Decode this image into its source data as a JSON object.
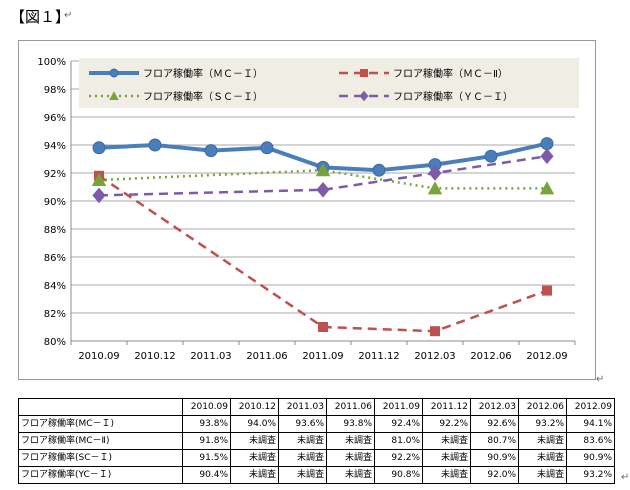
{
  "doc": {
    "title": "【図１】",
    "para_mark": "↵"
  },
  "chart_data": {
    "type": "line",
    "title": "",
    "xlabel": "",
    "ylabel": "",
    "categories": [
      "2010.09",
      "2010.12",
      "2011.03",
      "2011.06",
      "2011.09",
      "2011.12",
      "2012.03",
      "2012.06",
      "2012.09"
    ],
    "ylim": [
      80,
      100
    ],
    "yticks": [
      80,
      82,
      84,
      86,
      88,
      90,
      92,
      94,
      96,
      98,
      100
    ],
    "ytick_labels": [
      "80%",
      "82%",
      "84%",
      "86%",
      "88%",
      "90%",
      "92%",
      "94%",
      "96%",
      "98%",
      "100%"
    ],
    "grid": true,
    "legend_position": "top",
    "series": [
      {
        "name": "フロア稼働率（ＭＣ－Ｉ）",
        "values": [
          93.8,
          94.0,
          93.6,
          93.8,
          92.4,
          92.2,
          92.6,
          93.2,
          94.1
        ],
        "color": "#4a7ebb",
        "marker": "circle",
        "style": "solid"
      },
      {
        "name": "フロア稼働率（ＭＣ－Ⅱ）",
        "values": [
          91.8,
          null,
          null,
          null,
          81.0,
          null,
          80.7,
          null,
          83.6
        ],
        "color": "#c0504d",
        "marker": "square",
        "style": "dashed"
      },
      {
        "name": "フロア稼働率（ＳＣ－Ｉ）",
        "values": [
          91.5,
          null,
          null,
          null,
          92.2,
          null,
          90.9,
          null,
          90.9
        ],
        "color": "#77a339",
        "marker": "triangle",
        "style": "dotted"
      },
      {
        "name": "フロア稼働率（ＹＣ－Ｉ）",
        "values": [
          90.4,
          null,
          null,
          null,
          90.8,
          null,
          92.0,
          null,
          93.2
        ],
        "color": "#7d5ba6",
        "marker": "diamond",
        "style": "dashed"
      }
    ]
  },
  "table": {
    "headers": [
      "2010.09",
      "2010.12",
      "2011.03",
      "2011.06",
      "2011.09",
      "2011.12",
      "2012.03",
      "2012.06",
      "2012.09"
    ],
    "rows": [
      {
        "label": "フロア稼働率(MC－Ｉ)",
        "cells": [
          "93.8%",
          "94.0%",
          "93.6%",
          "93.8%",
          "92.4%",
          "92.2%",
          "92.6%",
          "93.2%",
          "94.1%"
        ]
      },
      {
        "label": "フロア稼働率(MC－Ⅱ)",
        "cells": [
          "91.8%",
          "未調査",
          "未調査",
          "未調査",
          "81.0%",
          "未調査",
          "80.7%",
          "未調査",
          "83.6%"
        ]
      },
      {
        "label": "フロア稼働率(SC－Ｉ)",
        "cells": [
          "91.5%",
          "未調査",
          "未調査",
          "未調査",
          "92.2%",
          "未調査",
          "90.9%",
          "未調査",
          "90.9%"
        ]
      },
      {
        "label": "フロア稼働率(YC－Ｉ)",
        "cells": [
          "90.4%",
          "未調査",
          "未調査",
          "未調査",
          "90.8%",
          "未調査",
          "92.0%",
          "未調査",
          "93.2%"
        ]
      }
    ]
  }
}
